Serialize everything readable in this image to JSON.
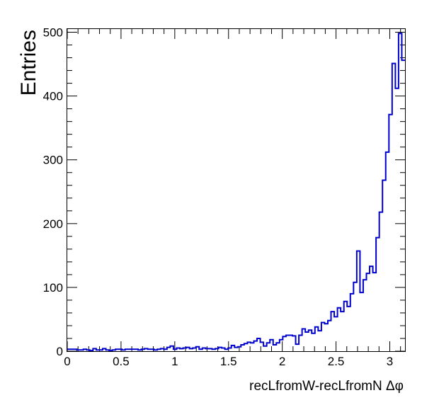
{
  "chart_data": {
    "type": "histogram",
    "xlabel": "recLfromW-recLfromN Δφ",
    "ylabel": "Entries",
    "xlim": [
      0,
      3.1416
    ],
    "ylim": [
      0,
      505
    ],
    "x_ticks": [
      {
        "value": 0,
        "label": "0"
      },
      {
        "value": 0.5,
        "label": "0.5"
      },
      {
        "value": 1,
        "label": "1"
      },
      {
        "value": 1.5,
        "label": "1.5"
      },
      {
        "value": 2,
        "label": "2"
      },
      {
        "value": 2.5,
        "label": "2.5"
      },
      {
        "value": 3,
        "label": "3"
      }
    ],
    "y_ticks": [
      {
        "value": 0,
        "label": "0"
      },
      {
        "value": 100,
        "label": "100"
      },
      {
        "value": 200,
        "label": "200"
      },
      {
        "value": 300,
        "label": "300"
      },
      {
        "value": 400,
        "label": "400"
      },
      {
        "value": 500,
        "label": "500"
      }
    ],
    "line_color": "#0000cc",
    "bin_values": [
      3,
      3,
      3,
      2,
      2,
      3,
      2,
      1,
      4,
      2,
      2,
      4,
      2,
      1,
      2,
      3,
      3,
      2,
      3,
      3,
      3,
      3,
      2,
      3,
      4,
      3,
      3,
      2,
      3,
      4,
      3,
      6,
      8,
      3,
      5,
      4,
      5,
      6,
      4,
      5,
      7,
      3,
      5,
      4,
      4,
      3,
      4,
      6,
      5,
      3,
      5,
      9,
      6,
      7,
      10,
      12,
      14,
      13,
      16,
      20,
      14,
      8,
      13,
      18,
      10,
      13,
      18,
      23,
      25,
      25,
      24,
      11,
      25,
      35,
      30,
      33,
      28,
      38,
      32,
      45,
      43,
      48,
      62,
      54,
      68,
      62,
      78,
      70,
      90,
      108,
      157,
      92,
      112,
      122,
      133,
      123,
      178,
      218,
      268,
      312,
      371,
      451,
      412,
      498,
      456
    ]
  }
}
